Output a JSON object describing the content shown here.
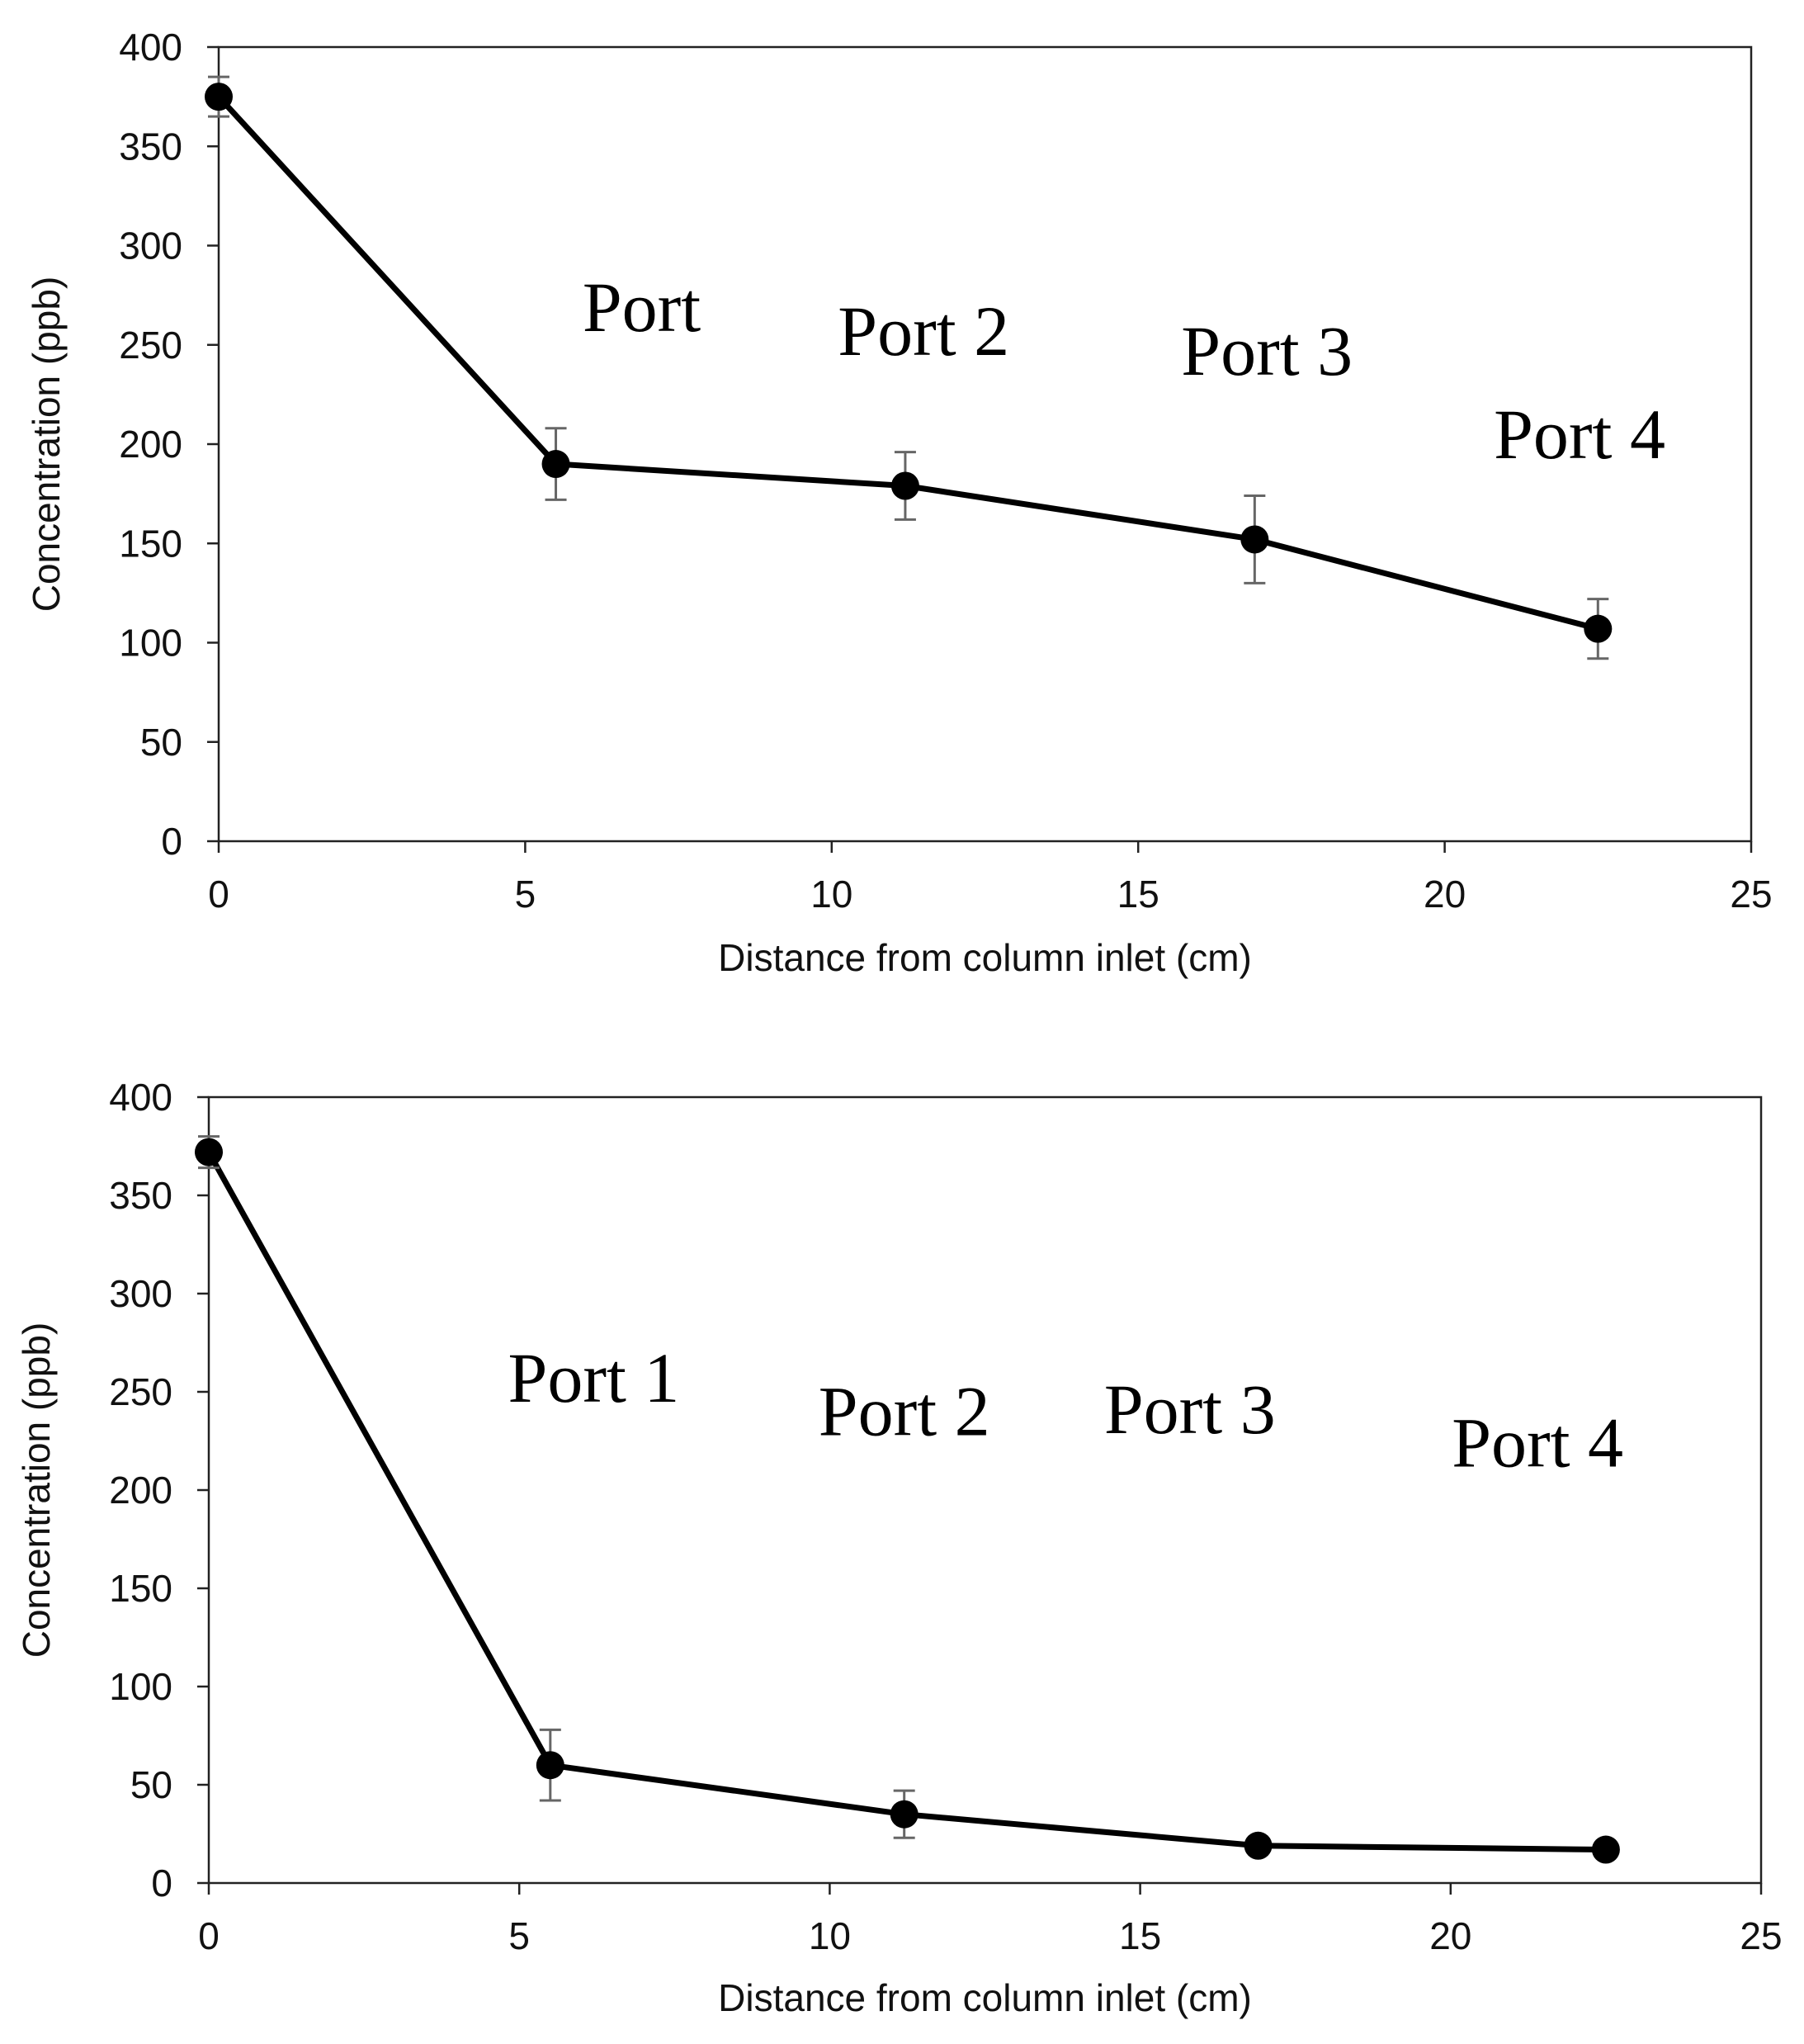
{
  "chart_data": [
    {
      "type": "line",
      "title": "",
      "xlabel": "Distance from column inlet (cm)",
      "ylabel": "Concentration (ppb)",
      "xlim": [
        0,
        25
      ],
      "ylim": [
        0,
        400
      ],
      "xticks": [
        0,
        5,
        10,
        15,
        20,
        25
      ],
      "yticks": [
        0,
        50,
        100,
        150,
        200,
        250,
        300,
        350,
        400
      ],
      "grid": false,
      "legend": "none",
      "series": [
        {
          "name": "Concentration",
          "x": [
            0,
            5.5,
            11.2,
            16.9,
            22.5
          ],
          "y": [
            375,
            190,
            179,
            152,
            107
          ],
          "error": [
            10,
            18,
            17,
            22,
            15
          ]
        }
      ],
      "annotations": [
        {
          "text": "Port",
          "x": 6.9,
          "y": 257
        },
        {
          "text": "Port 2",
          "x": 11.5,
          "y": 245
        },
        {
          "text": "Port 3",
          "x": 17.1,
          "y": 235
        },
        {
          "text": "Port 4",
          "x": 22.2,
          "y": 193
        }
      ]
    },
    {
      "type": "line",
      "title": "",
      "xlabel": "Distance from column inlet (cm)",
      "ylabel": "Concentration (ppb)",
      "xlim": [
        0,
        25
      ],
      "ylim": [
        0,
        400
      ],
      "xticks": [
        0,
        5,
        10,
        15,
        20,
        25
      ],
      "yticks": [
        0,
        50,
        100,
        150,
        200,
        250,
        300,
        350,
        400
      ],
      "grid": false,
      "legend": "none",
      "series": [
        {
          "name": "Concentration",
          "x": [
            0,
            5.5,
            11.2,
            16.9,
            22.5
          ],
          "y": [
            372,
            60,
            35,
            19,
            17
          ],
          "error": [
            8,
            18,
            12,
            0,
            0
          ]
        }
      ],
      "annotations": [
        {
          "text": "Port 1",
          "x": 6.2,
          "y": 245
        },
        {
          "text": "Port 2",
          "x": 11.2,
          "y": 228
        },
        {
          "text": "Port 3",
          "x": 15.8,
          "y": 229
        },
        {
          "text": "Port 4",
          "x": 21.4,
          "y": 212
        }
      ]
    }
  ]
}
